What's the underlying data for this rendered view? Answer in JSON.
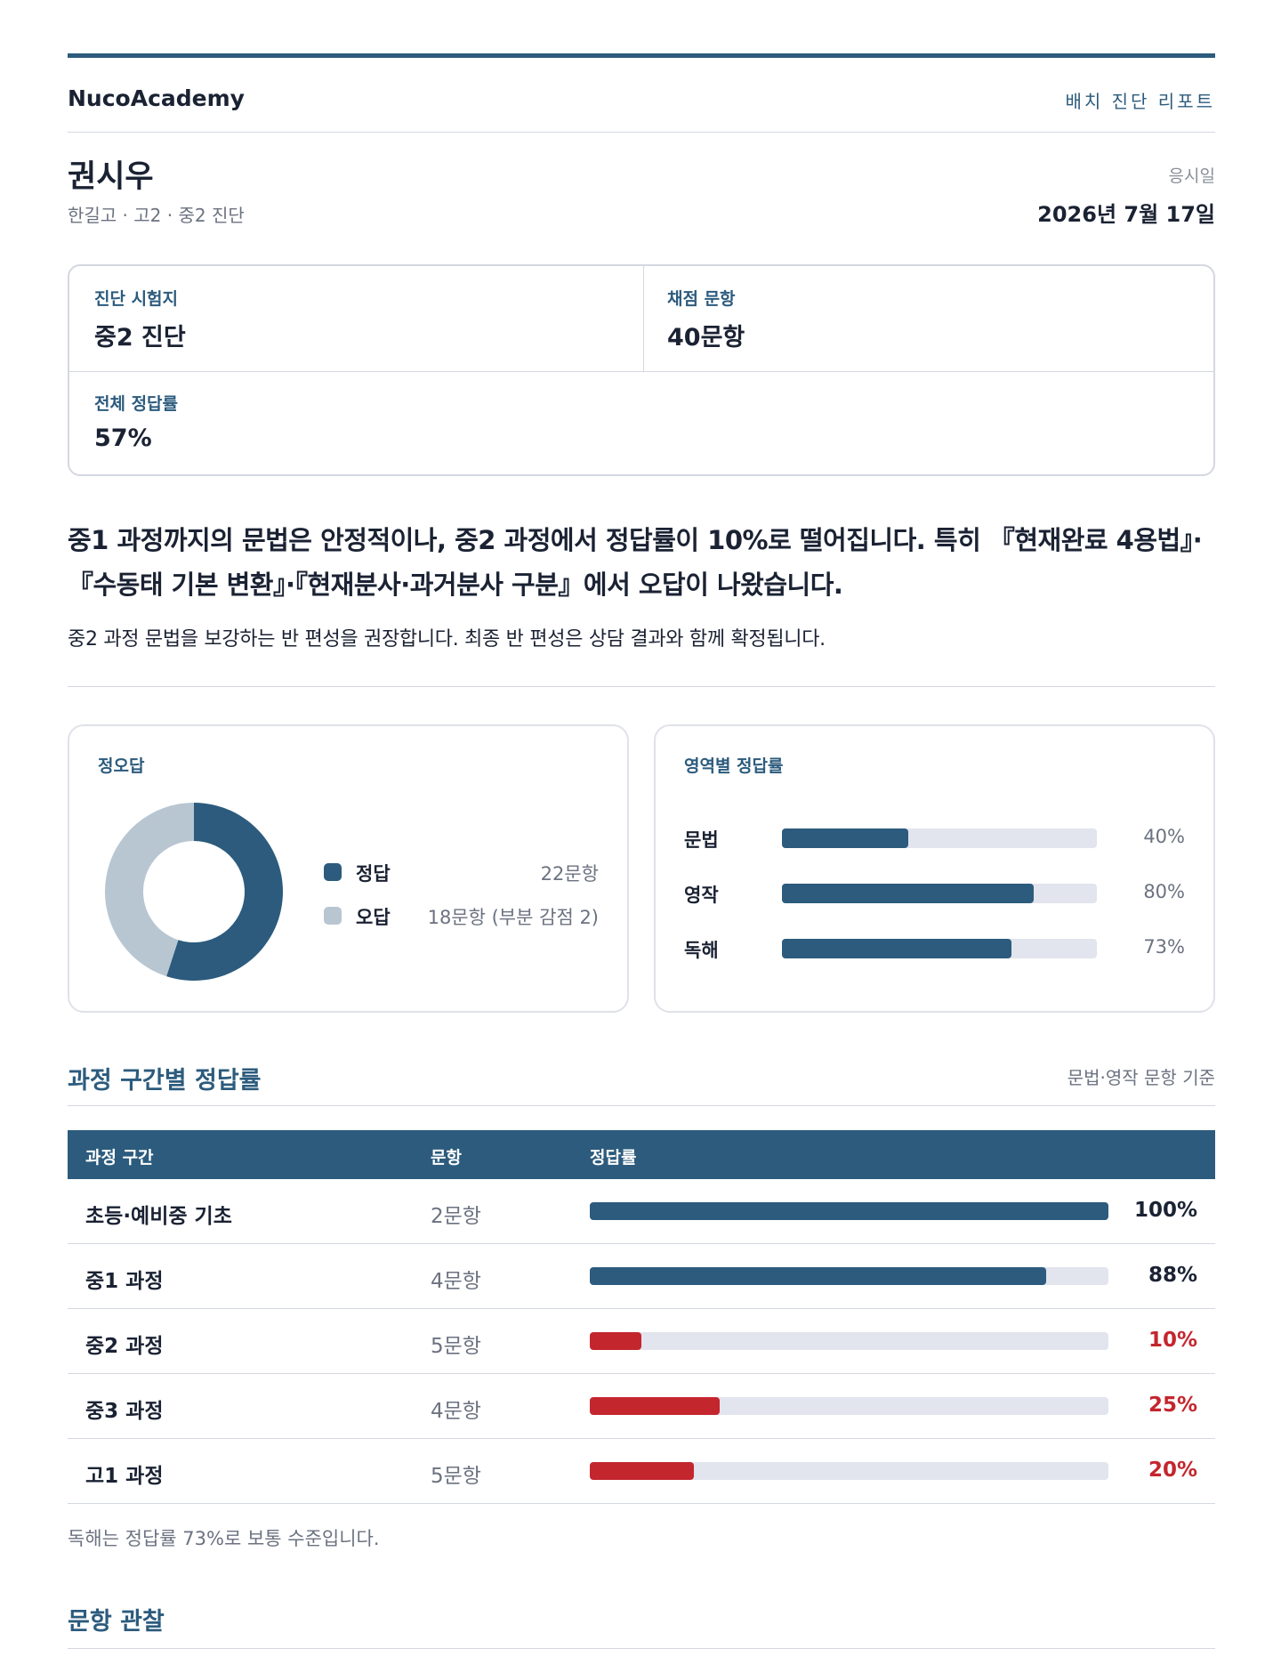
{
  "header": {
    "brand": "NucoAcademy",
    "report_label": "배치 진단 리포트"
  },
  "student": {
    "name": "권시우",
    "meta": "한길고 · 고2 · 중2 진단",
    "exam_date_label": "응시일",
    "exam_date": "2026년 7월 17일"
  },
  "summary": {
    "exam_label": "진단 시험지",
    "exam_value": "중2 진단",
    "items_label": "채점 문항",
    "items_value": "40문항",
    "accuracy_label": "전체 정답률",
    "accuracy_value": "57%"
  },
  "lead": {
    "text": "중1 과정까지의 문법은 안정적이나, 중2 과정에서 정답률이 10%로 떨어집니다. 특히 『현재완료 4용법』·『수동태 기본 변환』·『현재분사·과거분사 구분』에서 오답이 나왔습니다.",
    "recommendation": "중2 과정 문법을 보강하는 반 편성을 권장합니다. 최종 반 편성은 상담 결과와 함께 확정됩니다."
  },
  "answers": {
    "title": "정오답",
    "correct_label": "정답",
    "correct_value": "22문항",
    "wrong_label": "오답",
    "wrong_value": "18문항 (부분 감점 2)",
    "correct_color": "#2c5b7d",
    "wrong_color": "#b8c6d2"
  },
  "areas": {
    "title": "영역별 정답률",
    "items": [
      {
        "label": "문법",
        "pct_text": "40%",
        "fraction": 0.4
      },
      {
        "label": "영작",
        "pct_text": "80%",
        "fraction": 0.8
      },
      {
        "label": "독해",
        "pct_text": "73%",
        "fraction": 0.73
      }
    ]
  },
  "segments": {
    "title": "과정 구간별 정답률",
    "note": "문법·영작 문항 기준",
    "headers": {
      "segment": "과정 구간",
      "count": "문항",
      "accuracy": "정답률"
    },
    "rows": [
      {
        "segment": "초등·예비중 기초",
        "count": "2문항",
        "pct_text": "100%",
        "fraction": 1.0,
        "status": "ok"
      },
      {
        "segment": "중1 과정",
        "count": "4문항",
        "pct_text": "88%",
        "fraction": 0.88,
        "status": "ok"
      },
      {
        "segment": "중2 과정",
        "count": "5문항",
        "pct_text": "10%",
        "fraction": 0.1,
        "status": "weak"
      },
      {
        "segment": "중3 과정",
        "count": "4문항",
        "pct_text": "25%",
        "fraction": 0.25,
        "status": "weak"
      },
      {
        "segment": "고1 과정",
        "count": "5문항",
        "pct_text": "20%",
        "fraction": 0.2,
        "status": "weak"
      }
    ],
    "ok_color": "#2c5b7d",
    "weak_color": "#c4262e",
    "footnote": "독해는 정답률 73%로 보통 수준입니다."
  },
  "observations": {
    "title": "문항 관찰"
  },
  "chart_data": [
    {
      "type": "pie",
      "title": "정오답",
      "categories": [
        "정답",
        "오답"
      ],
      "values": [
        22,
        18
      ]
    },
    {
      "type": "bar",
      "title": "영역별 정답률",
      "categories": [
        "문법",
        "영작",
        "독해"
      ],
      "values": [
        40,
        80,
        73
      ],
      "ylim": [
        0,
        100
      ]
    },
    {
      "type": "bar",
      "title": "과정 구간별 정답률",
      "categories": [
        "초등·예비중 기초",
        "중1 과정",
        "중2 과정",
        "중3 과정",
        "고1 과정"
      ],
      "values": [
        100,
        88,
        10,
        25,
        20
      ],
      "ylim": [
        0,
        100
      ]
    }
  ]
}
